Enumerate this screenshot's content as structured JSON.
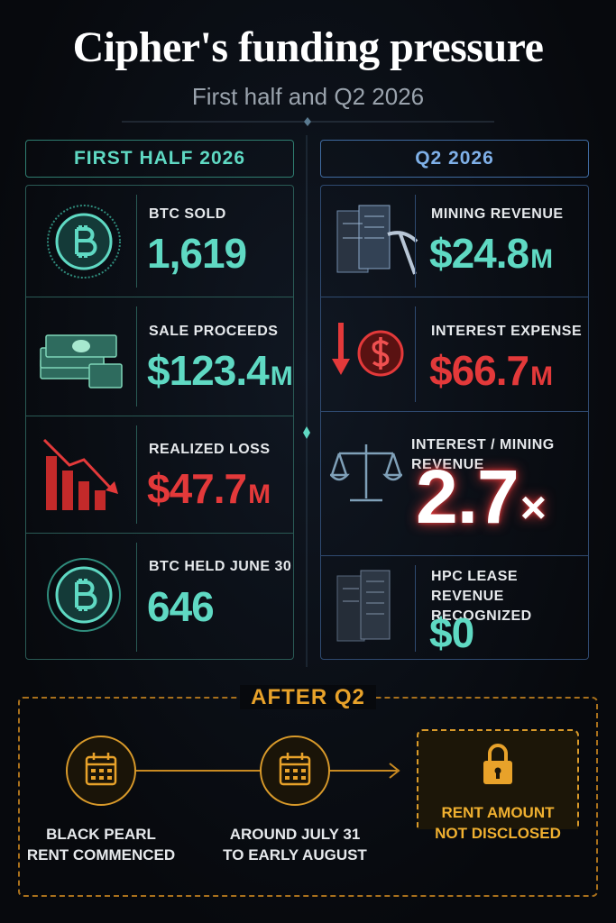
{
  "header": {
    "title": "Cipher's funding pressure",
    "subtitle": "First half and Q2 2026"
  },
  "left": {
    "heading": "FIRST HALF 2026",
    "items": [
      {
        "label": [
          "BTC SOLD"
        ],
        "value": "1,619",
        "unit": null
      },
      {
        "label": [
          "SALE PROCEEDS"
        ],
        "value": "$123.4",
        "unit": "M"
      },
      {
        "label": [
          "REALIZED LOSS"
        ],
        "value": "$47.7",
        "unit": "M"
      },
      {
        "label": [
          "BTC HELD JUNE 30"
        ],
        "value": "646",
        "unit": null
      }
    ]
  },
  "right": {
    "heading": "Q2 2026",
    "items": [
      {
        "label": [
          "MINING REVENUE"
        ],
        "value": "$24.8",
        "unit": "M"
      },
      {
        "label": [
          "INTEREST EXPENSE"
        ],
        "value": "$66.7",
        "unit": "M"
      },
      {
        "label": [
          "INTEREST / MINING REVENUE"
        ],
        "value": "2.7",
        "unit": "×"
      },
      {
        "label": [
          "HPC LEASE REVENUE",
          "RECOGNIZED"
        ],
        "value": "$0",
        "unit": null
      }
    ]
  },
  "after": {
    "heading": "AFTER Q2",
    "steps": [
      {
        "lines": [
          "BLACK PEARL",
          "RENT COMMENCED"
        ]
      },
      {
        "lines": [
          "AROUND JULY 31",
          "TO EARLY AUGUST"
        ]
      },
      {
        "lines": [
          "RENT AMOUNT",
          "NOT DISCLOSED"
        ]
      }
    ]
  }
}
